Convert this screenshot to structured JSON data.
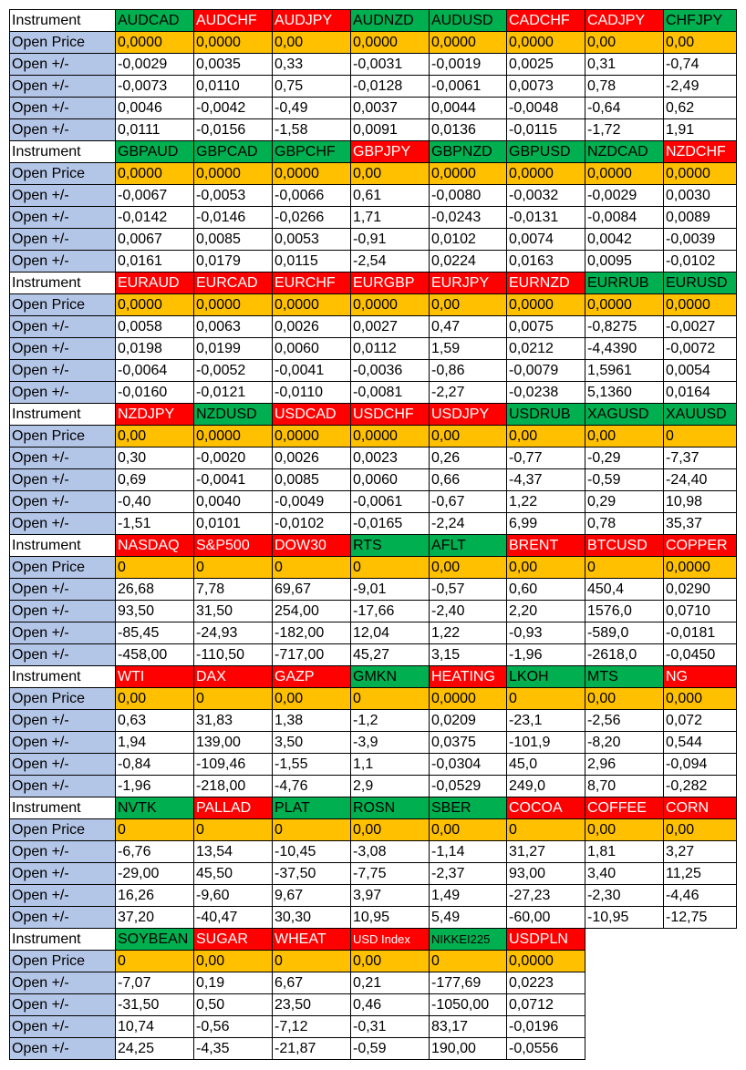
{
  "labels": {
    "instrument": "Instrument",
    "open_price": "Open Price",
    "open_change": "Open +/-"
  },
  "colors": {
    "label_bg": "#b4c6e7",
    "green": "#00b050",
    "red": "#ff0000",
    "open_bg": "#ffc000"
  },
  "blocks": [
    {
      "symbols": [
        [
          "AUDCAD",
          "green"
        ],
        [
          "AUDCHF",
          "red"
        ],
        [
          "AUDJPY",
          "red"
        ],
        [
          "AUDNZD",
          "green"
        ],
        [
          "AUDUSD",
          "green"
        ],
        [
          "CADCHF",
          "red"
        ],
        [
          "CADJPY",
          "red"
        ],
        [
          "CHFJPY",
          "green"
        ]
      ],
      "open": [
        "0,0000",
        "0,0000",
        "0,00",
        "0,0000",
        "0,0000",
        "0,0000",
        "0,00",
        "0,00"
      ],
      "rows": [
        [
          "-0,0029",
          "0,0035",
          "0,33",
          "-0,0031",
          "-0,0019",
          "0,0025",
          "0,31",
          "-0,74"
        ],
        [
          "-0,0073",
          "0,0110",
          "0,75",
          "-0,0128",
          "-0,0061",
          "0,0073",
          "0,78",
          "-2,49"
        ],
        [
          "0,0046",
          "-0,0042",
          "-0,49",
          "0,0037",
          "0,0044",
          "-0,0048",
          "-0,64",
          "0,62"
        ],
        [
          "0,0111",
          "-0,0156",
          "-1,58",
          "0,0091",
          "0,0136",
          "-0,0115",
          "-1,72",
          "1,91"
        ]
      ]
    },
    {
      "symbols": [
        [
          "GBPAUD",
          "green"
        ],
        [
          "GBPCAD",
          "green"
        ],
        [
          "GBPCHF",
          "green"
        ],
        [
          "GBPJPY",
          "red"
        ],
        [
          "GBPNZD",
          "green"
        ],
        [
          "GBPUSD",
          "green"
        ],
        [
          "NZDCAD",
          "green"
        ],
        [
          "NZDCHF",
          "red"
        ]
      ],
      "open": [
        "0,0000",
        "0,0000",
        "0,0000",
        "0,00",
        "0,0000",
        "0,0000",
        "0,0000",
        "0,0000"
      ],
      "rows": [
        [
          "-0,0067",
          "-0,0053",
          "-0,0066",
          "0,61",
          "-0,0080",
          "-0,0032",
          "-0,0029",
          "0,0030"
        ],
        [
          "-0,0142",
          "-0,0146",
          "-0,0266",
          "1,71",
          "-0,0243",
          "-0,0131",
          "-0,0084",
          "0,0089"
        ],
        [
          "0,0067",
          "0,0085",
          "0,0053",
          "-0,91",
          "0,0102",
          "0,0074",
          "0,0042",
          "-0,0039"
        ],
        [
          "0,0161",
          "0,0179",
          "0,0115",
          "-2,54",
          "0,0224",
          "0,0163",
          "0,0095",
          "-0,0102"
        ]
      ]
    },
    {
      "symbols": [
        [
          "EURAUD",
          "red"
        ],
        [
          "EURCAD",
          "red"
        ],
        [
          "EURCHF",
          "red"
        ],
        [
          "EURGBP",
          "red"
        ],
        [
          "EURJPY",
          "red"
        ],
        [
          "EURNZD",
          "red"
        ],
        [
          "EURRUB",
          "green"
        ],
        [
          "EURUSD",
          "green"
        ]
      ],
      "open": [
        "0,0000",
        "0,0000",
        "0,0000",
        "0,0000",
        "0,00",
        "0,0000",
        "0,0000",
        "0,0000"
      ],
      "rows": [
        [
          "0,0058",
          "0,0063",
          "0,0026",
          "0,0027",
          "0,47",
          "0,0075",
          "-0,8275",
          "-0,0027"
        ],
        [
          "0,0198",
          "0,0199",
          "0,0060",
          "0,0112",
          "1,59",
          "0,0212",
          "-4,4390",
          "-0,0072"
        ],
        [
          "-0,0064",
          "-0,0052",
          "-0,0041",
          "-0,0036",
          "-0,86",
          "-0,0079",
          "1,5961",
          "0,0054"
        ],
        [
          "-0,0160",
          "-0,0121",
          "-0,0110",
          "-0,0081",
          "-2,27",
          "-0,0238",
          "5,1360",
          "0,0164"
        ]
      ]
    },
    {
      "symbols": [
        [
          "NZDJPY",
          "red"
        ],
        [
          "NZDUSD",
          "green"
        ],
        [
          "USDCAD",
          "red"
        ],
        [
          "USDCHF",
          "red"
        ],
        [
          "USDJPY",
          "red"
        ],
        [
          "USDRUB",
          "green"
        ],
        [
          "XAGUSD",
          "green"
        ],
        [
          "XAUUSD",
          "green"
        ]
      ],
      "open": [
        "0,00",
        "0,0000",
        "0,0000",
        "0,0000",
        "0,00",
        "0,00",
        "0,00",
        "0"
      ],
      "rows": [
        [
          "0,30",
          "-0,0020",
          "0,0026",
          "0,0023",
          "0,26",
          "-0,77",
          "-0,29",
          "-7,37"
        ],
        [
          "0,69",
          "-0,0041",
          "0,0085",
          "0,0060",
          "0,66",
          "-4,37",
          "-0,59",
          "-24,40"
        ],
        [
          "-0,40",
          "0,0040",
          "-0,0049",
          "-0,0061",
          "-0,67",
          "1,22",
          "0,29",
          "10,98"
        ],
        [
          "-1,51",
          "0,0101",
          "-0,0102",
          "-0,0165",
          "-2,24",
          "6,99",
          "0,78",
          "35,37"
        ]
      ]
    },
    {
      "symbols": [
        [
          "NASDAQ",
          "red"
        ],
        [
          "S&P500",
          "red"
        ],
        [
          "DOW30",
          "red"
        ],
        [
          "RTS",
          "green"
        ],
        [
          "AFLT",
          "green"
        ],
        [
          "BRENT",
          "red"
        ],
        [
          "BTCUSD",
          "red"
        ],
        [
          "COPPER",
          "red"
        ]
      ],
      "open": [
        "0",
        "0",
        "0",
        "0",
        "0,00",
        "0,00",
        "0",
        "0,0000"
      ],
      "rows": [
        [
          "26,68",
          "7,78",
          "69,67",
          "-9,01",
          "-0,57",
          "0,60",
          "450,4",
          "0,0290"
        ],
        [
          "93,50",
          "31,50",
          "254,00",
          "-17,66",
          "-2,40",
          "2,20",
          "1576,0",
          "0,0710"
        ],
        [
          "-85,45",
          "-24,93",
          "-182,00",
          "12,04",
          "1,22",
          "-0,93",
          "-589,0",
          "-0,0181"
        ],
        [
          "-458,00",
          "-110,50",
          "-717,00",
          "45,27",
          "3,15",
          "-1,96",
          "-2618,0",
          "-0,0450"
        ]
      ]
    },
    {
      "symbols": [
        [
          "WTI",
          "red"
        ],
        [
          "DAX",
          "red"
        ],
        [
          "GAZP",
          "red"
        ],
        [
          "GMKN",
          "green"
        ],
        [
          "HEATING",
          "red"
        ],
        [
          "LKOH",
          "green"
        ],
        [
          "MTS",
          "green"
        ],
        [
          "NG",
          "red"
        ]
      ],
      "open": [
        "0,00",
        "0",
        "0,00",
        "0",
        "0,0000",
        "0",
        "0,00",
        "0,000"
      ],
      "rows": [
        [
          "0,63",
          "31,83",
          "1,38",
          "-1,2",
          "0,0209",
          "-23,1",
          "-2,56",
          "0,072"
        ],
        [
          "1,94",
          "139,00",
          "3,50",
          "-3,9",
          "0,0375",
          "-101,9",
          "-8,20",
          "0,544"
        ],
        [
          "-0,84",
          "-109,46",
          "-1,55",
          "1,1",
          "-0,0304",
          "45,0",
          "2,96",
          "-0,094"
        ],
        [
          "-1,96",
          "-218,00",
          "-4,76",
          "2,9",
          "-0,0529",
          "249,0",
          "8,70",
          "-0,282"
        ]
      ]
    },
    {
      "symbols": [
        [
          "NVTK",
          "green"
        ],
        [
          "PALLAD",
          "red"
        ],
        [
          "PLAT",
          "green"
        ],
        [
          "ROSN",
          "green"
        ],
        [
          "SBER",
          "green"
        ],
        [
          "COCOA",
          "red"
        ],
        [
          "COFFEE",
          "red"
        ],
        [
          "CORN",
          "red"
        ]
      ],
      "open": [
        "0",
        "0",
        "0",
        "0,00",
        "0,00",
        "0",
        "0,00",
        "0,00"
      ],
      "rows": [
        [
          "-6,76",
          "13,54",
          "-10,45",
          "-3,08",
          "-1,14",
          "31,27",
          "1,81",
          "3,27"
        ],
        [
          "-29,00",
          "45,50",
          "-37,50",
          "-7,75",
          "-2,37",
          "93,00",
          "3,40",
          "11,25"
        ],
        [
          "16,26",
          "-9,60",
          "9,67",
          "3,97",
          "1,49",
          "-27,23",
          "-2,30",
          "-4,46"
        ],
        [
          "37,20",
          "-40,47",
          "30,30",
          "10,95",
          "5,49",
          "-60,00",
          "-10,95",
          "-12,75"
        ]
      ]
    },
    {
      "symbols": [
        [
          "SOYBEAN",
          "green"
        ],
        [
          "SUGAR",
          "red"
        ],
        [
          "WHEAT",
          "red"
        ],
        [
          "USD Index",
          "red"
        ],
        [
          "NIKKEI225",
          "green"
        ],
        [
          "USDPLN",
          "red"
        ]
      ],
      "open": [
        "0",
        "0,00",
        "0",
        "0,00",
        "0",
        "0,0000"
      ],
      "rows": [
        [
          "-7,07",
          "0,19",
          "6,67",
          "0,21",
          "-177,69",
          "0,0223"
        ],
        [
          "-31,50",
          "0,50",
          "23,50",
          "0,46",
          "-1050,00",
          "0,0712"
        ],
        [
          "10,74",
          "-0,56",
          "-7,12",
          "-0,31",
          "83,17",
          "-0,0196"
        ],
        [
          "24,25",
          "-4,35",
          "-21,87",
          "-0,59",
          "190,00",
          "-0,0556"
        ]
      ]
    }
  ]
}
